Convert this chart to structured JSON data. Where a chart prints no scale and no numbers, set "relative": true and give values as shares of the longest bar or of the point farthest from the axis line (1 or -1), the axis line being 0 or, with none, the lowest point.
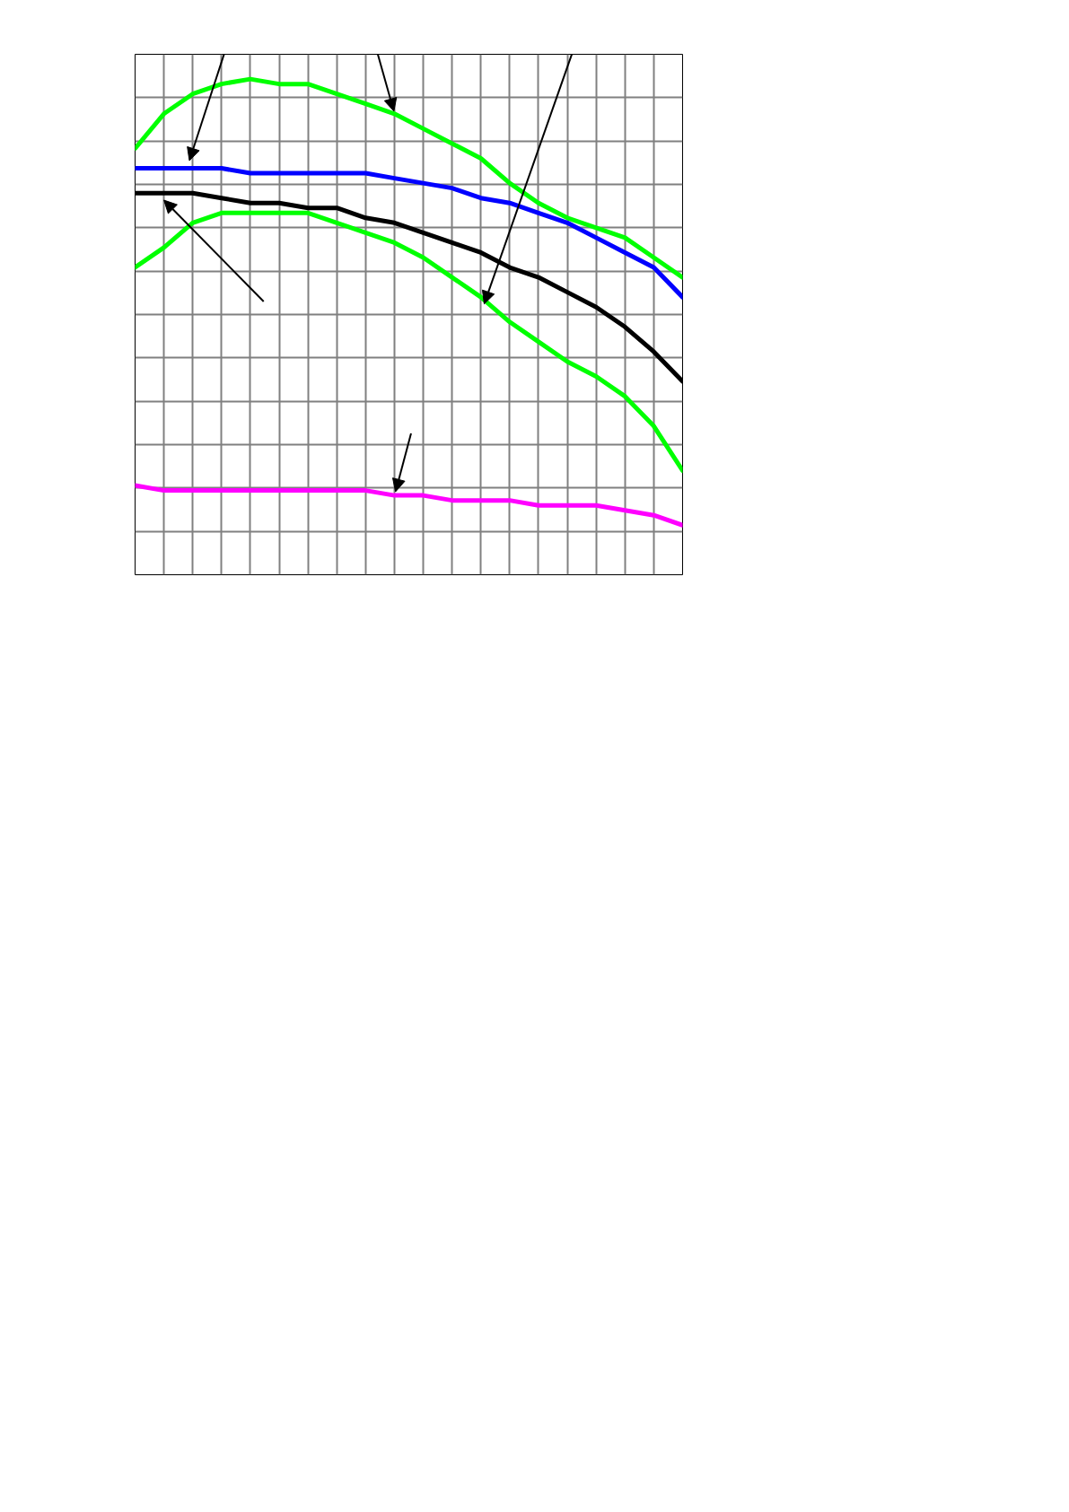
{
  "chart_data": {
    "type": "line",
    "relative": true,
    "grid": true,
    "categories": [
      null,
      null,
      null,
      null,
      null,
      null,
      null,
      null,
      null,
      null,
      null,
      null,
      null,
      null,
      null,
      null,
      null,
      null,
      null,
      null
    ],
    "series": [
      {
        "color": "#00ff00",
        "values": [
          0.86,
          0.93,
          0.97,
          0.99,
          1,
          0.99,
          0.99,
          0.97,
          0.95,
          0.93,
          0.9,
          0.87,
          0.84,
          0.79,
          0.75,
          0.72,
          0.7,
          0.68,
          0.64,
          0.6
        ]
      },
      {
        "color": "#0000ff",
        "values": [
          0.82,
          0.82,
          0.82,
          0.82,
          0.81,
          0.81,
          0.81,
          0.81,
          0.81,
          0.8,
          0.79,
          0.78,
          0.76,
          0.75,
          0.73,
          0.71,
          0.68,
          0.65,
          0.62,
          0.56
        ]
      },
      {
        "color": "#000000",
        "values": [
          0.77,
          0.77,
          0.77,
          0.76,
          0.75,
          0.75,
          0.74,
          0.74,
          0.72,
          0.71,
          0.69,
          0.67,
          0.65,
          0.62,
          0.6,
          0.57,
          0.54,
          0.5,
          0.45,
          0.39
        ]
      },
      {
        "color": "#00ff00",
        "values": [
          0.62,
          0.66,
          0.71,
          0.73,
          0.73,
          0.73,
          0.73,
          0.71,
          0.69,
          0.67,
          0.64,
          0.6,
          0.56,
          0.51,
          0.47,
          0.43,
          0.4,
          0.36,
          0.3,
          0.21
        ]
      },
      {
        "color": "#ff00ff",
        "values": [
          0.18,
          0.17,
          0.17,
          0.17,
          0.17,
          0.17,
          0.17,
          0.17,
          0.17,
          0.16,
          0.16,
          0.15,
          0.15,
          0.15,
          0.14,
          0.14,
          0.14,
          0.13,
          0.12,
          0.1
        ]
      }
    ]
  }
}
